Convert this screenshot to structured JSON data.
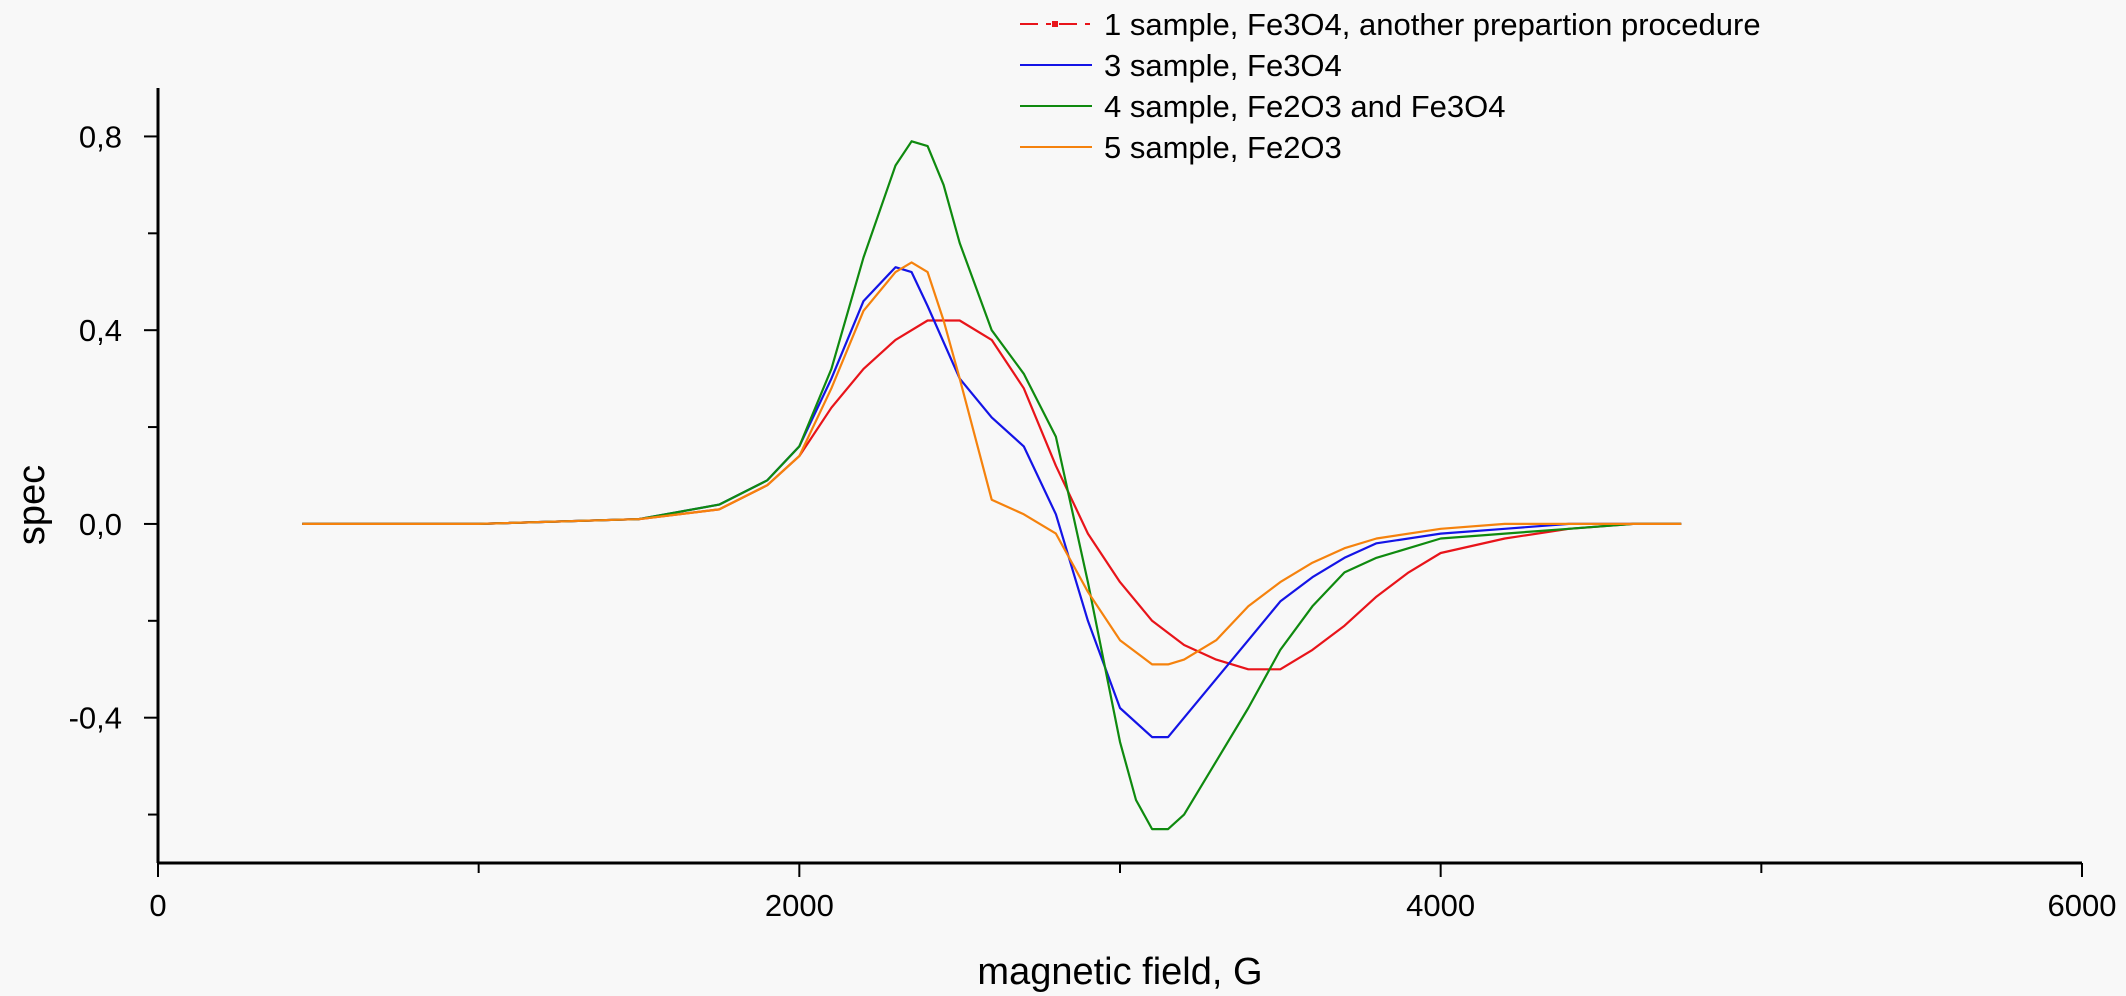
{
  "chart_data": {
    "type": "line",
    "title": "",
    "xlabel": "magnetic field, G",
    "ylabel": "spec",
    "xlim": [
      0,
      6000
    ],
    "ylim": [
      -0.7,
      0.9
    ],
    "x_ticks": [
      0,
      2000,
      4000,
      6000
    ],
    "x_tick_labels": [
      "0",
      "2000",
      "4000",
      "6000"
    ],
    "y_ticks": [
      -0.4,
      0.0,
      0.4,
      0.8
    ],
    "y_tick_labels": [
      "-0,4",
      "0,0",
      "0,4",
      "0,8"
    ],
    "grid": false,
    "legend_position": "top-center",
    "series": [
      {
        "name": "1 sample, Fe3O4, another prepartion procedure",
        "color": "#e8141a",
        "x": [
          450,
          1000,
          1500,
          1750,
          1900,
          2000,
          2100,
          2200,
          2300,
          2400,
          2500,
          2600,
          2700,
          2800,
          2900,
          3000,
          3100,
          3200,
          3300,
          3400,
          3500,
          3600,
          3700,
          3800,
          3900,
          4000,
          4200,
          4400,
          4600,
          4750
        ],
        "y": [
          0.0,
          0.0,
          0.01,
          0.03,
          0.08,
          0.14,
          0.24,
          0.32,
          0.38,
          0.42,
          0.42,
          0.38,
          0.28,
          0.12,
          -0.02,
          -0.12,
          -0.2,
          -0.25,
          -0.28,
          -0.3,
          -0.3,
          -0.26,
          -0.21,
          -0.15,
          -0.1,
          -0.06,
          -0.03,
          -0.01,
          0.0,
          0.0
        ]
      },
      {
        "name": "3 sample, Fe3O4",
        "color": "#1414e6",
        "x": [
          450,
          1000,
          1500,
          1750,
          1900,
          2000,
          2100,
          2200,
          2300,
          2350,
          2400,
          2500,
          2600,
          2700,
          2800,
          2900,
          3000,
          3100,
          3150,
          3200,
          3300,
          3400,
          3500,
          3600,
          3700,
          3800,
          4000,
          4200,
          4400,
          4600,
          4750
        ],
        "y": [
          0.0,
          0.0,
          0.01,
          0.04,
          0.09,
          0.16,
          0.3,
          0.46,
          0.53,
          0.52,
          0.45,
          0.3,
          0.22,
          0.16,
          0.02,
          -0.2,
          -0.38,
          -0.44,
          -0.44,
          -0.4,
          -0.32,
          -0.24,
          -0.16,
          -0.11,
          -0.07,
          -0.04,
          -0.02,
          -0.01,
          0.0,
          0.0,
          0.0
        ]
      },
      {
        "name": "4 sample, Fe2O3 and Fe3O4",
        "color": "#0f8a0f",
        "x": [
          450,
          1000,
          1500,
          1750,
          1900,
          2000,
          2100,
          2200,
          2300,
          2350,
          2400,
          2450,
          2500,
          2600,
          2700,
          2800,
          2900,
          3000,
          3050,
          3100,
          3150,
          3200,
          3300,
          3400,
          3500,
          3600,
          3700,
          3800,
          3900,
          4000,
          4200,
          4400,
          4600,
          4750
        ],
        "y": [
          0.0,
          0.0,
          0.01,
          0.04,
          0.09,
          0.16,
          0.32,
          0.55,
          0.74,
          0.79,
          0.78,
          0.7,
          0.58,
          0.4,
          0.31,
          0.18,
          -0.12,
          -0.45,
          -0.57,
          -0.63,
          -0.63,
          -0.6,
          -0.49,
          -0.38,
          -0.26,
          -0.17,
          -0.1,
          -0.07,
          -0.05,
          -0.03,
          -0.02,
          -0.01,
          0.0,
          0.0
        ]
      },
      {
        "name": "5 sample, Fe2O3",
        "color": "#f5820d",
        "x": [
          450,
          1000,
          1500,
          1750,
          1900,
          2000,
          2100,
          2200,
          2300,
          2350,
          2400,
          2450,
          2500,
          2600,
          2700,
          2800,
          2900,
          3000,
          3100,
          3150,
          3200,
          3300,
          3400,
          3500,
          3600,
          3700,
          3800,
          4000,
          4200,
          4400,
          4600,
          4750
        ],
        "y": [
          0.0,
          0.0,
          0.01,
          0.03,
          0.08,
          0.14,
          0.28,
          0.44,
          0.52,
          0.54,
          0.52,
          0.42,
          0.3,
          0.05,
          0.02,
          -0.02,
          -0.14,
          -0.24,
          -0.29,
          -0.29,
          -0.28,
          -0.24,
          -0.17,
          -0.12,
          -0.08,
          -0.05,
          -0.03,
          -0.01,
          0.0,
          0.0,
          0.0,
          0.0
        ]
      }
    ]
  }
}
